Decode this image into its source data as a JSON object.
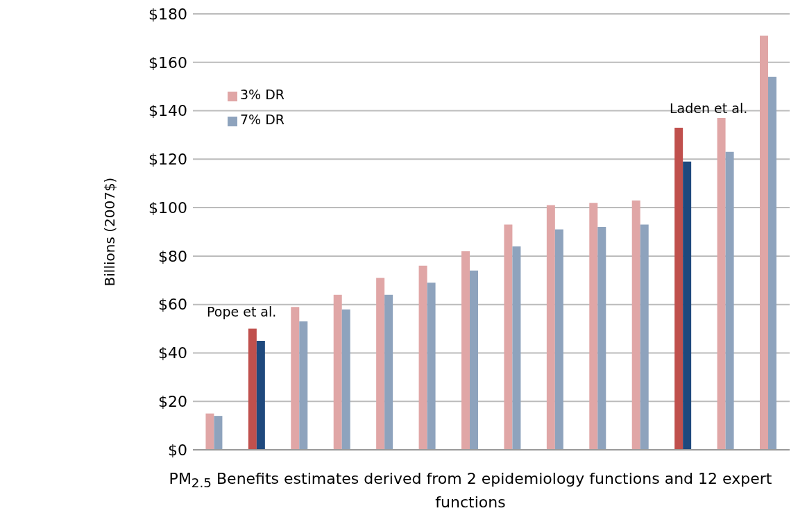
{
  "chart_data": {
    "type": "bar",
    "ylabel": "Billions (2007$)",
    "xlabel": "PM$_{2.5}$ Benefits estimates derived from 2 epidemiology functions and 12 expert functions",
    "categories": [
      null,
      null,
      null,
      null,
      null,
      null,
      null,
      null,
      null,
      null,
      null,
      null,
      null,
      null
    ],
    "series": [
      {
        "name": "3% DR",
        "color": "#e0a6a6",
        "colors": [
          "#e0a6a6",
          "#c0504d",
          "#e0a6a6",
          "#e0a6a6",
          "#e0a6a6",
          "#e0a6a6",
          "#e0a6a6",
          "#e0a6a6",
          "#e0a6a6",
          "#e0a6a6",
          "#e0a6a6",
          "#c0504d",
          "#e0a6a6",
          "#e0a6a6"
        ],
        "values": [
          15,
          50,
          59,
          64,
          71,
          76,
          82,
          93,
          101,
          102,
          103,
          133,
          137,
          171
        ]
      },
      {
        "name": "7% DR",
        "color": "#8ea3bd",
        "colors": [
          "#8ea3bd",
          "#1f497d",
          "#8ea3bd",
          "#8ea3bd",
          "#8ea3bd",
          "#8ea3bd",
          "#8ea3bd",
          "#8ea3bd",
          "#8ea3bd",
          "#8ea3bd",
          "#8ea3bd",
          "#1f497d",
          "#8ea3bd",
          "#8ea3bd"
        ],
        "values": [
          14,
          45,
          53,
          58,
          64,
          69,
          74,
          84,
          91,
          92,
          93,
          119,
          123,
          154
        ]
      }
    ],
    "annotations": [
      "Pope et al.",
      "Laden et al."
    ],
    "ylim": [
      0,
      180
    ],
    "yticks": [
      {
        "value": 0,
        "label": "$0"
      },
      {
        "value": 20,
        "label": "$20"
      },
      {
        "value": 40,
        "label": "$40"
      },
      {
        "value": 60,
        "label": "$60"
      },
      {
        "value": 80,
        "label": "$80"
      },
      {
        "value": 100,
        "label": "$100"
      },
      {
        "value": 120,
        "label": "$120"
      },
      {
        "value": 140,
        "label": "$140"
      },
      {
        "value": 160,
        "label": "$160"
      },
      {
        "value": 180,
        "label": "$180"
      }
    ],
    "grid": "y",
    "legend": "top left"
  }
}
